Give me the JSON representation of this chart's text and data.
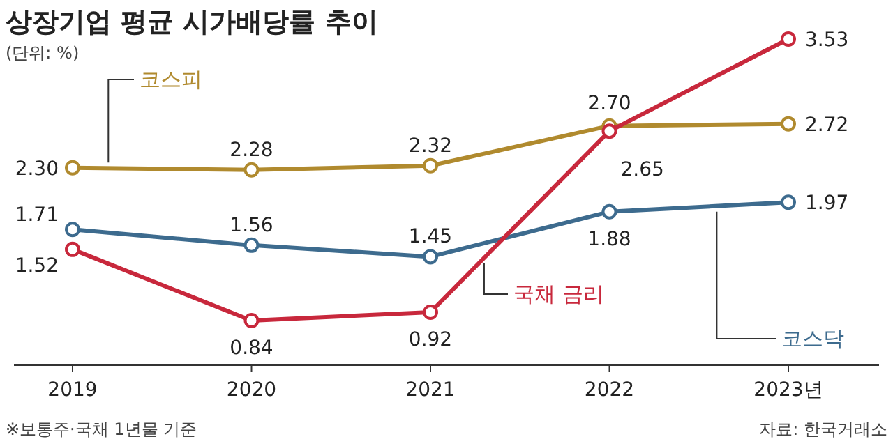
{
  "chart_data": {
    "type": "line",
    "title": "상장기업 평균 시가배당률 추이",
    "categories": [
      "2019",
      "2020",
      "2021",
      "2022",
      "2023년"
    ],
    "series": [
      {
        "name": "코스피",
        "color": "#b08a2e",
        "values": [
          2.3,
          2.28,
          2.32,
          2.7,
          2.72
        ],
        "value_labels": [
          "2.30",
          "2.28",
          "2.32",
          "2.70",
          "2.72"
        ]
      },
      {
        "name": "코스닥",
        "color": "#3d6b8e",
        "values": [
          1.71,
          1.56,
          1.45,
          1.88,
          1.97
        ],
        "value_labels": [
          "1.71",
          "1.56",
          "1.45",
          "1.88",
          "1.97"
        ]
      },
      {
        "name": "국채 금리",
        "color": "#c8283c",
        "values": [
          1.52,
          0.84,
          0.92,
          2.65,
          3.53
        ],
        "value_labels": [
          "1.52",
          "0.84",
          "0.92",
          "2.65",
          "3.53"
        ]
      }
    ],
    "marker": "circle",
    "legend": false,
    "annotations": [
      "(단위: %)",
      "※보통주·국채 1년물 기준",
      "자료: 한국거래소"
    ]
  }
}
